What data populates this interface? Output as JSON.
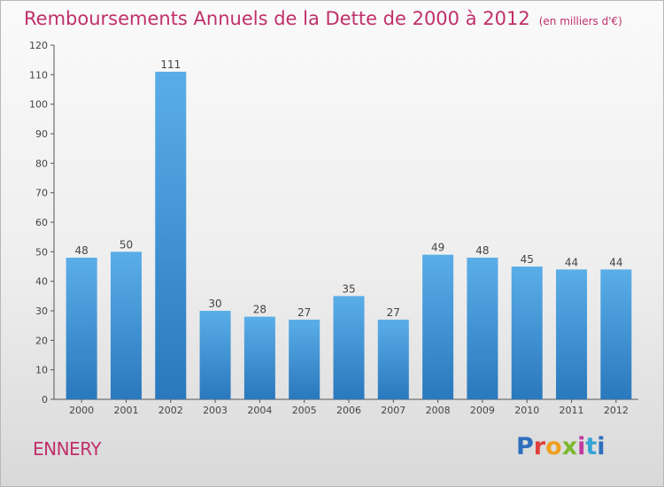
{
  "chart_data": {
    "type": "bar",
    "title": "Remboursements Annuels de la Dette de 2000 à 2012",
    "unit_note": "(en milliers d'€)",
    "categories": [
      "2000",
      "2001",
      "2002",
      "2003",
      "2004",
      "2005",
      "2006",
      "2007",
      "2008",
      "2009",
      "2010",
      "2011",
      "2012"
    ],
    "values": [
      48,
      50,
      111,
      30,
      28,
      27,
      35,
      27,
      49,
      48,
      45,
      44,
      44
    ],
    "ylim": [
      0,
      120
    ],
    "yticks": [
      0,
      10,
      20,
      30,
      40,
      50,
      60,
      70,
      80,
      90,
      100,
      110,
      120
    ],
    "grid": false,
    "legend": "none",
    "bar_color_light": "#5aaee8",
    "bar_color_dark": "#2a78bd"
  },
  "commune": "ENNERY",
  "logo": {
    "letters": [
      "P",
      "r",
      "o",
      "x",
      "i",
      "t",
      "i"
    ]
  },
  "colors": {
    "title": "#c0306a",
    "axis": "#555555",
    "text": "#444444"
  }
}
